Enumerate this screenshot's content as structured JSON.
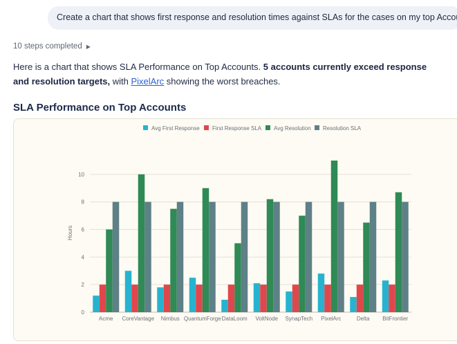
{
  "user_message": "Create a chart that shows first response and resolution times against SLAs for the cases on my top Accounts",
  "steps": {
    "label": "10 steps completed"
  },
  "answer": {
    "intro": "Here is a chart that shows SLA Performance on Top Accounts. ",
    "bold": "5 accounts currently exceed response and resolution targets,",
    "with": " with ",
    "link": "PixelArc",
    "tail": " showing the worst breaches."
  },
  "chart_title": "SLA Performance on Top Accounts",
  "colors": {
    "avg_first_response": "#27b3cf",
    "first_response_sla": "#e0474c",
    "avg_resolution": "#2f8a55",
    "resolution_sla": "#5e8087"
  },
  "chart_data": {
    "type": "bar",
    "categories": [
      "Acme",
      "CoreVantage",
      "Nimbus",
      "QuantumForge",
      "DataLoom",
      "VoltNode",
      "SynapTech",
      "PixelArc",
      "Delta",
      "BitFrontier"
    ],
    "series": [
      {
        "name": "Avg First Response",
        "values": [
          1.2,
          3.0,
          1.8,
          2.5,
          0.9,
          2.1,
          1.5,
          2.8,
          1.1,
          2.3
        ]
      },
      {
        "name": "First Response SLA",
        "values": [
          2,
          2,
          2,
          2,
          2,
          2,
          2,
          2,
          2,
          2
        ]
      },
      {
        "name": "Avg Resolution",
        "values": [
          6.0,
          10.0,
          7.5,
          9.0,
          5.0,
          8.2,
          7.0,
          11.0,
          6.5,
          8.7
        ]
      },
      {
        "name": "Resolution SLA",
        "values": [
          8,
          8,
          8,
          8,
          8,
          8,
          8,
          8,
          8,
          8
        ]
      }
    ],
    "ylabel": "Hours",
    "yticks": [
      0,
      2,
      4,
      6,
      8,
      10
    ],
    "ylim": [
      0,
      11.5
    ],
    "grid": true,
    "legend": "top-center"
  }
}
